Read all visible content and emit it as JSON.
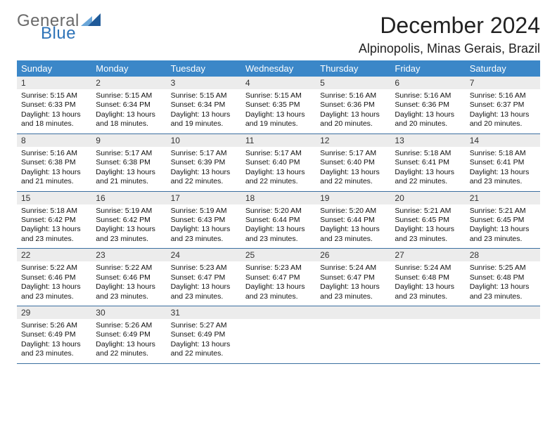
{
  "brand": {
    "general": "General",
    "blue": "Blue"
  },
  "title": "December 2024",
  "location": "Alpinopolis, Minas Gerais, Brazil",
  "colors": {
    "header_bg": "#3b87c8",
    "header_text": "#ffffff",
    "daynum_bg": "#ececec",
    "week_border": "#3b6fa0",
    "logo_gray": "#6a6a6a",
    "logo_blue": "#2d73b8",
    "tri_light": "#6aa6d8",
    "tri_dark": "#1f5a99"
  },
  "day_headers": [
    "Sunday",
    "Monday",
    "Tuesday",
    "Wednesday",
    "Thursday",
    "Friday",
    "Saturday"
  ],
  "days": [
    {
      "n": 1,
      "sr": "5:15 AM",
      "ss": "6:33 PM",
      "dl": "13 hours and 18 minutes."
    },
    {
      "n": 2,
      "sr": "5:15 AM",
      "ss": "6:34 PM",
      "dl": "13 hours and 18 minutes."
    },
    {
      "n": 3,
      "sr": "5:15 AM",
      "ss": "6:34 PM",
      "dl": "13 hours and 19 minutes."
    },
    {
      "n": 4,
      "sr": "5:15 AM",
      "ss": "6:35 PM",
      "dl": "13 hours and 19 minutes."
    },
    {
      "n": 5,
      "sr": "5:16 AM",
      "ss": "6:36 PM",
      "dl": "13 hours and 20 minutes."
    },
    {
      "n": 6,
      "sr": "5:16 AM",
      "ss": "6:36 PM",
      "dl": "13 hours and 20 minutes."
    },
    {
      "n": 7,
      "sr": "5:16 AM",
      "ss": "6:37 PM",
      "dl": "13 hours and 20 minutes."
    },
    {
      "n": 8,
      "sr": "5:16 AM",
      "ss": "6:38 PM",
      "dl": "13 hours and 21 minutes."
    },
    {
      "n": 9,
      "sr": "5:17 AM",
      "ss": "6:38 PM",
      "dl": "13 hours and 21 minutes."
    },
    {
      "n": 10,
      "sr": "5:17 AM",
      "ss": "6:39 PM",
      "dl": "13 hours and 22 minutes."
    },
    {
      "n": 11,
      "sr": "5:17 AM",
      "ss": "6:40 PM",
      "dl": "13 hours and 22 minutes."
    },
    {
      "n": 12,
      "sr": "5:17 AM",
      "ss": "6:40 PM",
      "dl": "13 hours and 22 minutes."
    },
    {
      "n": 13,
      "sr": "5:18 AM",
      "ss": "6:41 PM",
      "dl": "13 hours and 22 minutes."
    },
    {
      "n": 14,
      "sr": "5:18 AM",
      "ss": "6:41 PM",
      "dl": "13 hours and 23 minutes."
    },
    {
      "n": 15,
      "sr": "5:18 AM",
      "ss": "6:42 PM",
      "dl": "13 hours and 23 minutes."
    },
    {
      "n": 16,
      "sr": "5:19 AM",
      "ss": "6:42 PM",
      "dl": "13 hours and 23 minutes."
    },
    {
      "n": 17,
      "sr": "5:19 AM",
      "ss": "6:43 PM",
      "dl": "13 hours and 23 minutes."
    },
    {
      "n": 18,
      "sr": "5:20 AM",
      "ss": "6:44 PM",
      "dl": "13 hours and 23 minutes."
    },
    {
      "n": 19,
      "sr": "5:20 AM",
      "ss": "6:44 PM",
      "dl": "13 hours and 23 minutes."
    },
    {
      "n": 20,
      "sr": "5:21 AM",
      "ss": "6:45 PM",
      "dl": "13 hours and 23 minutes."
    },
    {
      "n": 21,
      "sr": "5:21 AM",
      "ss": "6:45 PM",
      "dl": "13 hours and 23 minutes."
    },
    {
      "n": 22,
      "sr": "5:22 AM",
      "ss": "6:46 PM",
      "dl": "13 hours and 23 minutes."
    },
    {
      "n": 23,
      "sr": "5:22 AM",
      "ss": "6:46 PM",
      "dl": "13 hours and 23 minutes."
    },
    {
      "n": 24,
      "sr": "5:23 AM",
      "ss": "6:47 PM",
      "dl": "13 hours and 23 minutes."
    },
    {
      "n": 25,
      "sr": "5:23 AM",
      "ss": "6:47 PM",
      "dl": "13 hours and 23 minutes."
    },
    {
      "n": 26,
      "sr": "5:24 AM",
      "ss": "6:47 PM",
      "dl": "13 hours and 23 minutes."
    },
    {
      "n": 27,
      "sr": "5:24 AM",
      "ss": "6:48 PM",
      "dl": "13 hours and 23 minutes."
    },
    {
      "n": 28,
      "sr": "5:25 AM",
      "ss": "6:48 PM",
      "dl": "13 hours and 23 minutes."
    },
    {
      "n": 29,
      "sr": "5:26 AM",
      "ss": "6:49 PM",
      "dl": "13 hours and 23 minutes."
    },
    {
      "n": 30,
      "sr": "5:26 AM",
      "ss": "6:49 PM",
      "dl": "13 hours and 22 minutes."
    },
    {
      "n": 31,
      "sr": "5:27 AM",
      "ss": "6:49 PM",
      "dl": "13 hours and 22 minutes."
    }
  ],
  "labels": {
    "sunrise": "Sunrise: ",
    "sunset": "Sunset: ",
    "daylight": "Daylight: "
  },
  "layout": {
    "first_weekday_index": 0,
    "weeks": 5,
    "cols": 7,
    "trailing_empty": 4
  }
}
